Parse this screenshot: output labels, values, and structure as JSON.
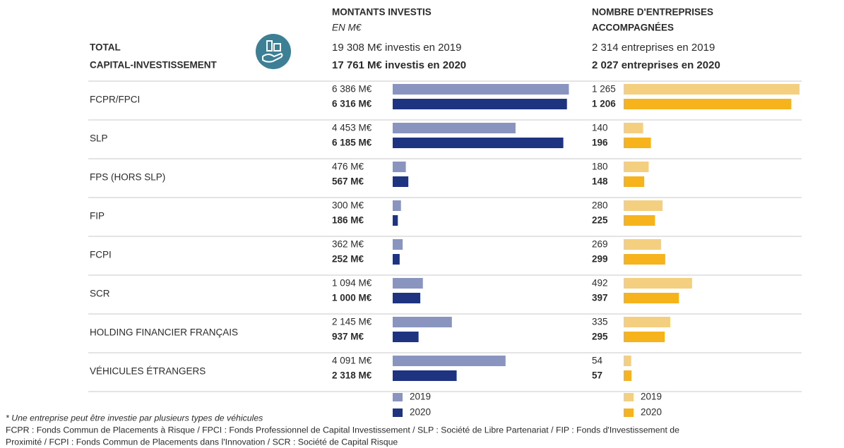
{
  "chart_data": {
    "type": "bar",
    "title": [
      "TOTAL",
      "CAPITAL-INVESTISSEMENT"
    ],
    "categories": [
      "FCPR/FPCI",
      "SLP",
      "FPS (HORS SLP)",
      "FIP",
      "FCPI",
      "SCR",
      "HOLDING FINANCIER FRANÇAIS",
      "VÉHICULES ÉTRANGERS"
    ],
    "panels": [
      {
        "title": [
          "MONTANTS INVESTIS"
        ],
        "subtitle": "EN M€",
        "totals": [
          "19 308 M€ investis en 2019",
          "17 761 M€ investis en 2020"
        ],
        "xlim": [
          0,
          6400
        ],
        "series": [
          {
            "name": "2019",
            "color": "#8a95bf",
            "values": [
              6386,
              4453,
              476,
              300,
              362,
              1094,
              2145,
              4091
            ],
            "value_labels": [
              "6 386 M€",
              "4 453 M€",
              "476 M€",
              "300 M€",
              "362 M€",
              "1 094 M€",
              "2 145 M€",
              "4 091 M€"
            ]
          },
          {
            "name": "2020",
            "color": "#1f3480",
            "values": [
              6316,
              6185,
              567,
              186,
              252,
              1000,
              937,
              2318
            ],
            "value_labels": [
              "6 316 M€",
              "6 185 M€",
              "567 M€",
              "186 M€",
              "252 M€",
              "1 000 M€",
              "937 M€",
              "2 318 M€"
            ]
          }
        ]
      },
      {
        "title": [
          "NOMBRE D'ENTREPRISES",
          "ACCOMPAGNÉES"
        ],
        "totals": [
          "2 314 entreprises en 2019",
          "2 027 entreprises en 2020"
        ],
        "xlim": [
          0,
          1270
        ],
        "series": [
          {
            "name": "2019",
            "color": "#f3cf7f",
            "values": [
              1265,
              140,
              180,
              280,
              269,
              492,
              335,
              54
            ],
            "value_labels": [
              "1 265",
              "140",
              "180",
              "280",
              "269",
              "492",
              "335",
              "54"
            ]
          },
          {
            "name": "2020",
            "color": "#f6b31b",
            "values": [
              1206,
              196,
              148,
              225,
              299,
              397,
              295,
              57
            ],
            "value_labels": [
              "1 206",
              "196",
              "148",
              "225",
              "299",
              "397",
              "295",
              "57"
            ]
          }
        ]
      }
    ],
    "notes": [
      "* Une entreprise peut être investie par plusieurs types de véhicules",
      "FCPR : Fonds Commun de Placements à Risque / FPCI : Fonds Professionnel de Capital Investissement / SLP : Société de Libre Partenariat / FIP : Fonds d'Investissement de",
      "Proximité / FCPI : Fonds Commun de Placements dans l'Innovation / SCR : Société de Capital Risque"
    ]
  }
}
